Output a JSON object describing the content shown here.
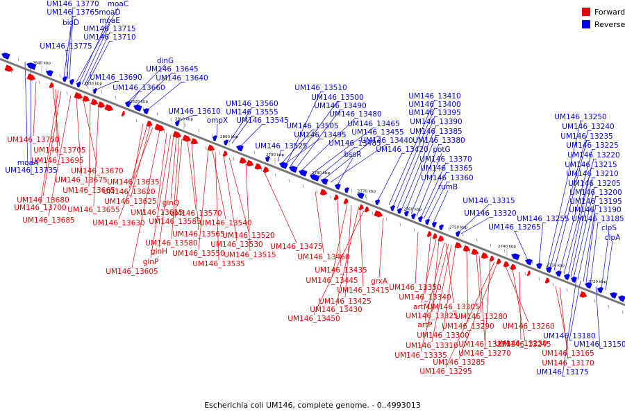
{
  "legend": {
    "forward_label": "Forward",
    "reverse_label": "Reverse",
    "forward_color": "#ee0000",
    "reverse_color": "#0000ee"
  },
  "caption": "Escherichia coli UM146, complete genome. - 0..4993013",
  "kbp_ticks": [
    "2840 kbp",
    "2830 kbp",
    "2820 kbp",
    "2810 kbp",
    "2800 kbp",
    "2790 kbp",
    "2780 kbp",
    "2770 kbp",
    "2760 kbp",
    "2750 kbp",
    "2740 kbp",
    "2730 kbp",
    "2720 kbp"
  ],
  "reverse_genes": [
    "UM146_13770",
    "moaC",
    "UM146_13765",
    "moaD",
    "moaE",
    "bioD",
    "UM146_13715",
    "UM146_13710",
    "UM146_13775",
    "UM146_13690",
    "dinG",
    "UM146_13645",
    "UM146_13640",
    "UM146_13660",
    "UM146_13560",
    "UM146_13555",
    "UM146_13545",
    "UM146_13610",
    "ompX",
    "UM146_13510",
    "UM146_13500",
    "UM146_13490",
    "UM146_13480",
    "UM146_13505",
    "UM146_13495",
    "UM146_13465",
    "UM146_13485",
    "UM146_13455",
    "UM146_13440",
    "UM146_13525",
    "bssR",
    "UM146_13410",
    "UM146_13400",
    "UM146_13395",
    "UM146_13390",
    "UM146_13385",
    "UM146_13380",
    "potG",
    "UM146_13420",
    "UM146_13370",
    "UM146_13365",
    "UM146_13360",
    "rumB",
    "UM146_13315",
    "UM146_13320",
    "UM146_13250",
    "UM146_13240",
    "UM146_13235",
    "UM146_13225",
    "UM146_13220",
    "UM146_13215",
    "UM146_13210",
    "UM146_13205",
    "UM146_13200",
    "UM146_13195",
    "UM146_13190",
    "UM146_13185",
    "UM146_13255",
    "UM146_13265",
    "clpS",
    "clpA",
    "moaA",
    "UM146_13735",
    "UM146_13180",
    "UM146_13150",
    "UM146_13175"
  ],
  "forward_genes": [
    "UM146_13750",
    "UM146_13705",
    "UM146_13695",
    "UM146_13670",
    "UM146_13675",
    "UM146_13665",
    "UM146_13680",
    "UM146_13700",
    "UM146_13655",
    "UM146_13685",
    "UM146_13635",
    "UM146_13620",
    "UM146_13625",
    "UM146_13630",
    "UM146_13615",
    "glnQ",
    "UM146_13585",
    "UM146_13570",
    "UM146_13565",
    "UM146_13580",
    "glnH",
    "glnP",
    "UM146_13605",
    "UM146_13540",
    "UM146_13520",
    "UM146_13530",
    "UM146_13550",
    "UM146_13535",
    "UM146_13515",
    "UM146_13475",
    "UM146_13460",
    "UM146_13435",
    "UM146_13445",
    "UM146_13415",
    "UM146_13425",
    "UM146_13430",
    "UM146_13450",
    "grxA",
    "UM146_13350",
    "UM146_13340",
    "artM",
    "UM146_13325",
    "UM146_13305",
    "artP",
    "UM146_13300",
    "UM146_13290",
    "UM146_13280",
    "UM146_13310",
    "UM146_13275",
    "UM146_13335",
    "UM146_13270",
    "UM146_13285",
    "UM146_13295",
    "UM146_13260",
    "UM146_13245",
    "UM146_13230",
    "UM146_13165",
    "UM146_13170"
  ]
}
